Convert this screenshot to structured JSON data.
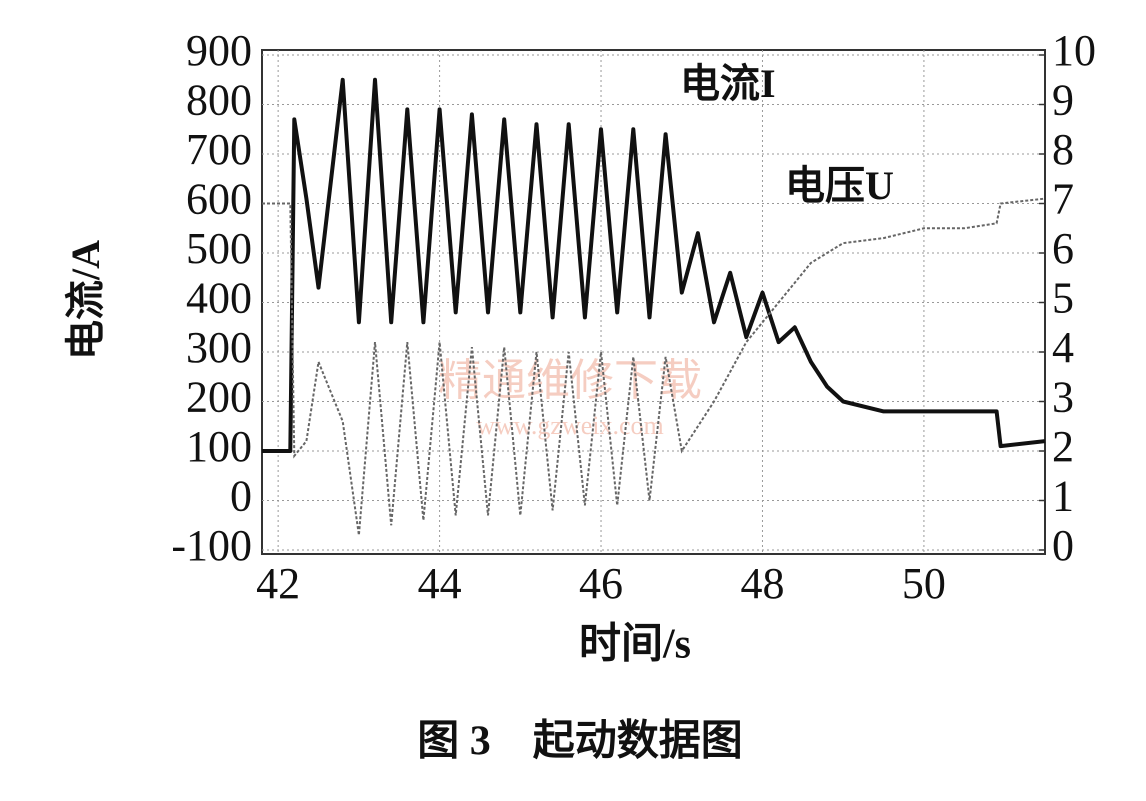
{
  "chart_data": {
    "type": "line",
    "caption": "图 3　起动数据图",
    "xlabel": "时间/s",
    "ylabel": "电流/A",
    "watermark": [
      "精通维修下载",
      "www.gzweix.com"
    ],
    "x": [
      41.8,
      42.15,
      42.2,
      42.35,
      42.5,
      42.8,
      43.0,
      43.2,
      43.4,
      43.6,
      43.8,
      44.0,
      44.2,
      44.4,
      44.6,
      44.8,
      45.0,
      45.2,
      45.4,
      45.6,
      45.8,
      46.0,
      46.2,
      46.4,
      46.6,
      46.8,
      47.0,
      47.2,
      47.4,
      47.6,
      47.8,
      48.0,
      48.2,
      48.4,
      48.6,
      48.8,
      49.0,
      49.5,
      50.0,
      50.5,
      50.9,
      50.95,
      51.5
    ],
    "series": [
      {
        "name": "电流I",
        "color": "#111111",
        "axis": "y",
        "values": [
          100,
          100,
          770,
          610,
          430,
          850,
          360,
          850,
          360,
          790,
          360,
          790,
          380,
          780,
          380,
          770,
          380,
          760,
          370,
          760,
          370,
          750,
          380,
          750,
          370,
          740,
          420,
          540,
          360,
          460,
          330,
          420,
          320,
          350,
          280,
          230,
          200,
          180,
          180,
          180,
          180,
          110,
          120
        ]
      },
      {
        "name": "电压U",
        "color": "#666666",
        "axis": "y2",
        "values": [
          7,
          7,
          1.9,
          2.2,
          3.8,
          2.6,
          0.3,
          4.2,
          0.5,
          4.2,
          0.6,
          4.2,
          0.7,
          4.1,
          0.7,
          4.1,
          0.7,
          4,
          0.8,
          4,
          0.9,
          4,
          0.9,
          3.9,
          1,
          3.9,
          2,
          2.5,
          3,
          3.6,
          4.2,
          4.6,
          5,
          5.4,
          5.8,
          6,
          6.2,
          6.3,
          6.5,
          6.5,
          6.6,
          7,
          7.1
        ]
      }
    ],
    "xlim": [
      41.8,
      51.5
    ],
    "xticks": [
      42,
      44,
      46,
      48,
      50
    ],
    "ylim": [
      -100,
      900
    ],
    "yticks": [
      -100,
      0,
      100,
      200,
      300,
      400,
      500,
      600,
      700,
      800,
      900
    ],
    "y2lim": [
      0,
      10
    ],
    "y2ticks": [
      0,
      1,
      2,
      3,
      4,
      5,
      6,
      7,
      8,
      9,
      10
    ],
    "grid": true
  }
}
